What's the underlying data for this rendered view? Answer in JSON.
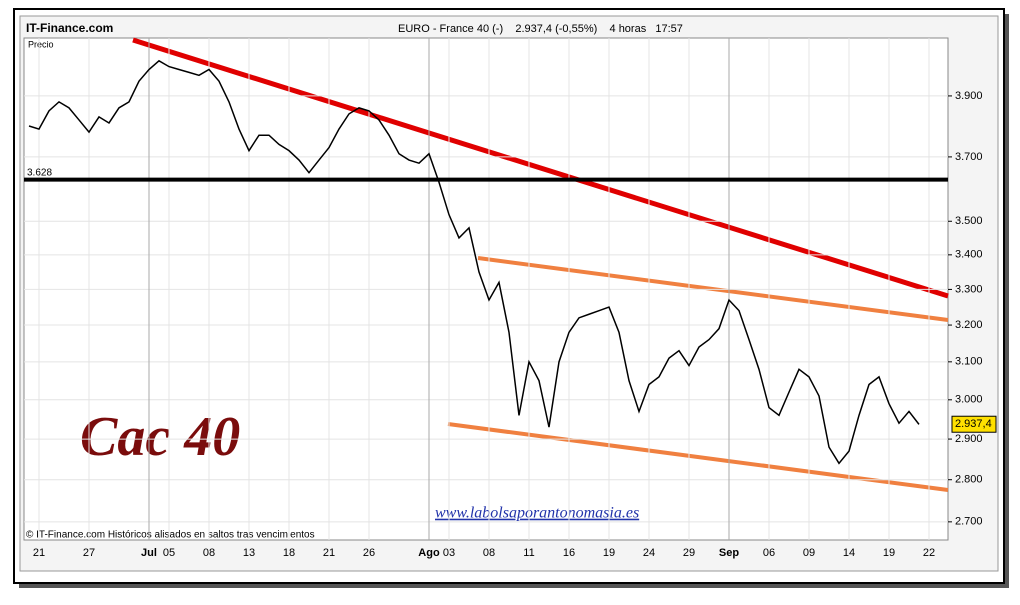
{
  "header": {
    "site": "IT-Finance.com",
    "title": "EURO - France 40 (-)    2.937,4 (-0,55%)    4 horas   17:57"
  },
  "footer": "© IT-Finance.com Históricos alisados en saltos tras vencimientos",
  "watermark": "Cac 40",
  "url": "www.labolsaporantonomasia.es",
  "chart_data": {
    "type": "line",
    "y_label": "Precio",
    "log_scale": true,
    "grid": true,
    "categories": [
      null,
      "21",
      null,
      null,
      null,
      null,
      "27",
      null,
      null,
      null,
      null,
      null,
      "Jul",
      null,
      "05",
      null,
      null,
      null,
      "08",
      null,
      null,
      null,
      "13",
      null,
      null,
      null,
      "18",
      null,
      null,
      null,
      "21",
      null,
      null,
      null,
      "26",
      null,
      null,
      null,
      null,
      null,
      "Ago",
      null,
      "03",
      null,
      null,
      null,
      "08",
      null,
      null,
      null,
      "11",
      null,
      null,
      null,
      "16",
      null,
      null,
      null,
      "19",
      null,
      null,
      null,
      "24",
      null,
      null,
      null,
      "29",
      null,
      null,
      null,
      "Sep",
      null,
      null,
      null,
      "06",
      null,
      null,
      null,
      "09",
      null,
      null,
      null,
      "14",
      null,
      null,
      null,
      "19",
      null,
      null,
      null,
      "22"
    ],
    "series": [
      {
        "name": "CAC 40",
        "color": "#000000",
        "values": [
          3800,
          3790,
          3850,
          3880,
          3860,
          3820,
          3780,
          3830,
          3810,
          3860,
          3880,
          3950,
          3990,
          4020,
          4000,
          3990,
          3980,
          3970,
          3990,
          3950,
          3880,
          3790,
          3720,
          3770,
          3770,
          3740,
          3720,
          3690,
          3650,
          3690,
          3730,
          3790,
          3840,
          3860,
          3850,
          3820,
          3770,
          3710,
          3690,
          3680,
          3710,
          3620,
          3520,
          3450,
          3480,
          3350,
          3270,
          3320,
          3180,
          2960,
          3100,
          3050,
          2930,
          3100,
          3180,
          3220,
          3230,
          3240,
          3250,
          3180,
          3050,
          2970,
          3040,
          3060,
          3110,
          3130,
          3090,
          3140,
          3160,
          3190,
          3270,
          3240,
          3160,
          3080,
          2980,
          2960,
          3020,
          3080,
          3060,
          3010,
          2880,
          2840,
          2870,
          2960,
          3040,
          3060,
          2990,
          2940,
          2970,
          2937,
          null
        ]
      }
    ],
    "last_value": 2937.4,
    "last_label": "2.937,4",
    "support": {
      "value": 3628,
      "label": "3.628"
    },
    "ylim": [
      2658,
      4100
    ],
    "yticks": [
      {
        "value": 2700,
        "label": "2.700"
      },
      {
        "value": 2800,
        "label": "2.800"
      },
      {
        "value": 2900,
        "label": "2.900"
      },
      {
        "value": 3000,
        "label": "3.000"
      },
      {
        "value": 3100,
        "label": "3.100"
      },
      {
        "value": 3200,
        "label": "3.200"
      },
      {
        "value": 3300,
        "label": "3.300"
      },
      {
        "value": 3400,
        "label": "3.400"
      },
      {
        "value": 3500,
        "label": "3.500"
      },
      {
        "value": 3700,
        "label": "3.700"
      },
      {
        "value": 3900,
        "label": "3.900"
      }
    ]
  }
}
